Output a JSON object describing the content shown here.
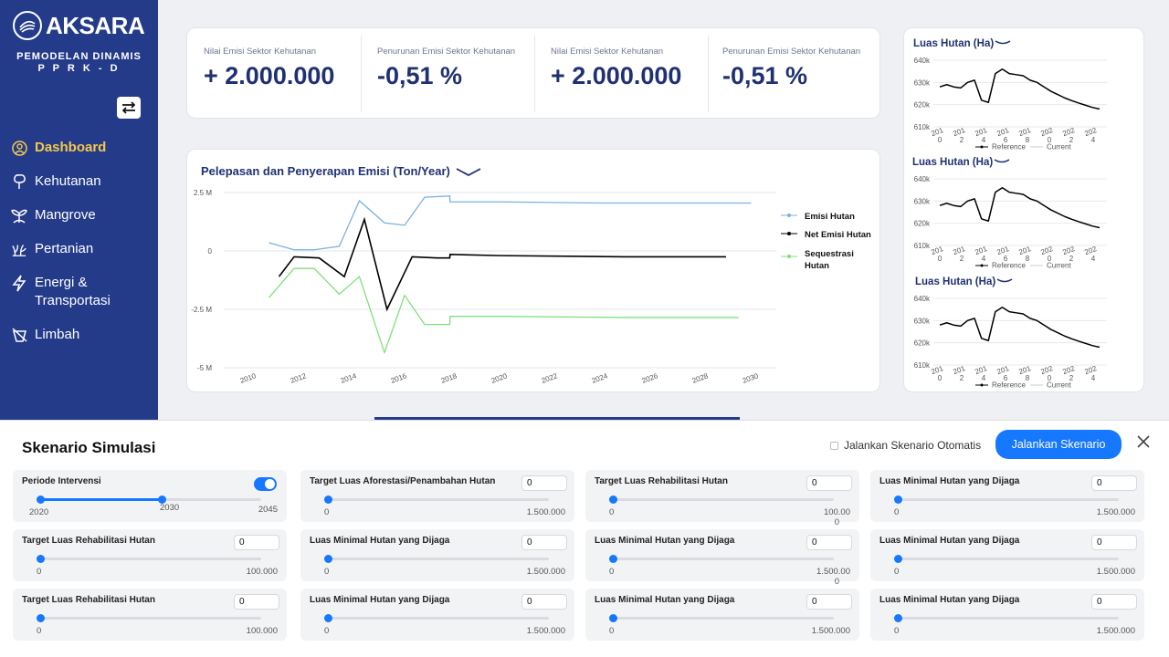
{
  "brand": {
    "name": "AKSARA",
    "subtitle1": "PEMODELAN DINAMIS",
    "subtitle2": "P P R K - D"
  },
  "nav": [
    {
      "label": "Dashboard",
      "icon": "user-circle-icon",
      "active": true
    },
    {
      "label": "Kehutanan",
      "icon": "tree-icon"
    },
    {
      "label": "Mangrove",
      "icon": "mangrove-icon"
    },
    {
      "label": "Pertanian",
      "icon": "plant-icon"
    },
    {
      "label": "Energi & Transportasi",
      "icon": "lightning-icon"
    },
    {
      "label": "Limbah",
      "icon": "waste-icon"
    }
  ],
  "kpis": [
    {
      "label": "Nilai Emisi Sektor Kehutanan",
      "value": "+ 2.000.000"
    },
    {
      "label": "Penurunan Emisi Sektor Kehutanan",
      "value": "-0,51 %"
    },
    {
      "label": "Nilai Emisi Sektor Kehutanan",
      "value": "+ 2.000.000"
    },
    {
      "label": "Penurunan Emisi Sektor Kehutanan",
      "value": "-0,51 %"
    }
  ],
  "chart_data": [
    {
      "type": "line",
      "title": "Pelepasan dan Penyerapan Emisi (Ton/Year)",
      "xlim": [
        2009,
        2031
      ],
      "ylim": [
        -5000000,
        2500000
      ],
      "x_ticks": [
        "2010",
        "2012",
        "2014",
        "2016",
        "2018",
        "2020",
        "2022",
        "2024",
        "2026",
        "2028",
        "2030"
      ],
      "y_ticks": [
        {
          "v": 2500000,
          "l": "2.5 M"
        },
        {
          "v": 0,
          "l": "0"
        },
        {
          "v": -2500000,
          "l": "-2.5 M"
        },
        {
          "v": -5000000,
          "l": "-5 M"
        }
      ],
      "legend_position": "right",
      "series": [
        {
          "name": "Emisi Hutan",
          "color": "#7ab0e3",
          "x": [
            2010.8,
            2011.8,
            2012.6,
            2013.6,
            2014.4,
            2015.4,
            2016.2,
            2017.0,
            2018.0,
            2018.01,
            2020,
            2024,
            2030
          ],
          "y": [
            350000,
            50000,
            50000,
            200000,
            2150000,
            1200000,
            1100000,
            2300000,
            2350000,
            2100000,
            2100000,
            2050000,
            2050000
          ]
        },
        {
          "name": "Net Emisi Hutan",
          "color": "#000000",
          "x": [
            2011.2,
            2011.8,
            2012.8,
            2013.8,
            2014.6,
            2015.5,
            2016.5,
            2017.5,
            2018.0,
            2018.01,
            2020,
            2025,
            2029
          ],
          "y": [
            -1100000,
            -250000,
            -300000,
            -1100000,
            1350000,
            -2500000,
            -250000,
            -300000,
            -300000,
            -150000,
            -200000,
            -250000,
            -250000
          ]
        },
        {
          "name": "Sequestrasi Hutan",
          "color": "#7fe07a",
          "x": [
            2010.8,
            2011.8,
            2012.6,
            2013.6,
            2014.4,
            2015.4,
            2016.2,
            2017.0,
            2018.0,
            2018.01,
            2020,
            2025,
            2029.5
          ],
          "y": [
            -2000000,
            -750000,
            -750000,
            -1850000,
            -1100000,
            -4350000,
            -1900000,
            -3150000,
            -3150000,
            -2800000,
            -2800000,
            -2850000,
            -2850000
          ]
        }
      ]
    },
    {
      "type": "line",
      "title": "Luas Hutan (Ha)",
      "ylim": [
        610000,
        640000
      ],
      "y_ticks": [
        {
          "v": 640000,
          "l": "640k"
        },
        {
          "v": 630000,
          "l": "630k"
        },
        {
          "v": 620000,
          "l": "620k"
        },
        {
          "v": 610000,
          "l": "610k"
        }
      ],
      "x_ticks": [
        [
          "201",
          "0"
        ],
        [
          "201",
          "2"
        ],
        [
          "201",
          "4"
        ],
        [
          "201",
          "6"
        ],
        [
          "201",
          "8"
        ],
        [
          "202",
          "0"
        ],
        [
          "202",
          "2"
        ],
        [
          "202",
          "4"
        ]
      ],
      "legend": [
        "Reference",
        "Current"
      ],
      "series": [
        {
          "name": "Reference",
          "values": [
            628000,
            629000,
            628000,
            627500,
            630000,
            631000,
            622000,
            621000,
            634000,
            636000,
            634000,
            633500,
            633000,
            631000,
            630000,
            628000,
            626000,
            624500,
            623000,
            621800,
            620700,
            619700,
            618700,
            618000
          ]
        }
      ]
    },
    {
      "type": "line",
      "title": "Luas Hutan (Ha)",
      "ylim": [
        610000,
        640000
      ],
      "y_ticks": [
        {
          "v": 640000,
          "l": "640k"
        },
        {
          "v": 630000,
          "l": "630k"
        },
        {
          "v": 620000,
          "l": "620k"
        },
        {
          "v": 610000,
          "l": "610k"
        }
      ],
      "x_ticks": [
        [
          "201",
          "0"
        ],
        [
          "201",
          "2"
        ],
        [
          "201",
          "4"
        ],
        [
          "201",
          "6"
        ],
        [
          "201",
          "8"
        ],
        [
          "202",
          "0"
        ],
        [
          "202",
          "2"
        ],
        [
          "202",
          "4"
        ]
      ],
      "legend": [
        "Reference",
        "Current"
      ],
      "series": [
        {
          "name": "Reference",
          "values": [
            628000,
            629000,
            628000,
            627500,
            630000,
            631000,
            622000,
            621000,
            634000,
            636000,
            634000,
            633500,
            633000,
            631000,
            630000,
            628000,
            626000,
            624500,
            623000,
            621800,
            620700,
            619700,
            618700,
            618000
          ]
        }
      ]
    },
    {
      "type": "line",
      "title": "Luas Hutan (Ha)",
      "ylim": [
        610000,
        640000
      ],
      "y_ticks": [
        {
          "v": 640000,
          "l": "640k"
        },
        {
          "v": 630000,
          "l": "630k"
        },
        {
          "v": 620000,
          "l": "620k"
        },
        {
          "v": 610000,
          "l": "610k"
        }
      ],
      "x_ticks": [
        [
          "201",
          "0"
        ],
        [
          "201",
          "2"
        ],
        [
          "201",
          "4"
        ],
        [
          "201",
          "6"
        ],
        [
          "201",
          "8"
        ],
        [
          "202",
          "0"
        ],
        [
          "202",
          "2"
        ],
        [
          "202",
          "4"
        ]
      ],
      "legend": [
        "Reference",
        "Current"
      ],
      "series": [
        {
          "name": "Reference",
          "values": [
            628000,
            629000,
            628000,
            627500,
            630000,
            631000,
            622000,
            621000,
            634000,
            636000,
            634000,
            633500,
            633000,
            631000,
            630000,
            628000,
            626000,
            624500,
            623000,
            621800,
            620700,
            619700,
            618700,
            618000
          ]
        }
      ]
    }
  ],
  "sim": {
    "title": "Skenario Simulasi",
    "auto_label": "Jalankan Skenario Otomatis",
    "run_label": "Jalankan Skenario",
    "controls": [
      {
        "label": "Periode Intervensi",
        "type": "range",
        "min": "2020",
        "mid": "2030",
        "max": "2045",
        "level": 0.55
      },
      {
        "label": "Target Luas Aforestasi/Penambahan Hutan",
        "value": "0",
        "min": "0",
        "max": "1.500.000",
        "level": 0
      },
      {
        "label": "Target Luas Rehabilitasi Hutan",
        "value": "0",
        "min": "0",
        "max": "100.00",
        "extra": "0",
        "level": 0
      },
      {
        "label": "Luas Minimal Hutan yang Dijaga",
        "value": "0",
        "min": "0",
        "max": "1.500.000",
        "level": 0
      },
      {
        "label": "Target Luas Rehabilitasi Hutan",
        "value": "0",
        "min": "0",
        "max": "100.000",
        "level": 0
      },
      {
        "label": "Luas Minimal Hutan yang Dijaga",
        "value": "0",
        "min": "0",
        "max": "1.500.000",
        "level": 0
      },
      {
        "label": "Luas Minimal Hutan yang Dijaga",
        "value": "0",
        "min": "0",
        "max": "1.500.00",
        "extra": "0",
        "level": 0
      },
      {
        "label": "Luas Minimal Hutan yang Dijaga",
        "value": "0",
        "min": "0",
        "max": "1.500.000",
        "level": 0
      },
      {
        "label": "Target Luas Rehabilitasi Hutan",
        "value": "0",
        "min": "0",
        "max": "100.000",
        "level": 0
      },
      {
        "label": "Luas Minimal Hutan yang Dijaga",
        "value": "0",
        "min": "0",
        "max": "1.500.000",
        "level": 0
      },
      {
        "label": "Luas Minimal Hutan yang Dijaga",
        "value": "0",
        "min": "0",
        "max": "1.500.000",
        "level": 0
      },
      {
        "label": "Luas Minimal Hutan yang Dijaga",
        "value": "0",
        "min": "0",
        "max": "1.500.000",
        "level": 0
      }
    ]
  }
}
